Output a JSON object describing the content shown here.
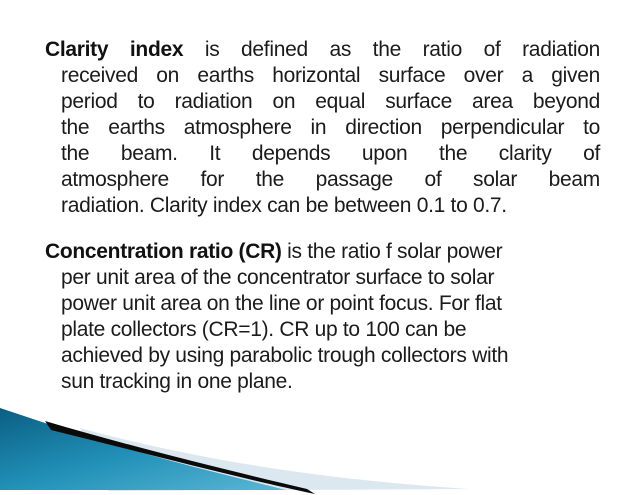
{
  "slide": {
    "p1": {
      "lead": "Clarity index",
      "first_line_rest": " is defined as the ratio of radiation",
      "lines_justified": [
        "received on earths horizontal surface over a given",
        "period to radiation on equal surface area beyond",
        "the earths atmosphere in direction perpendicular to",
        "the beam. It depends upon the clarity of",
        "atmosphere for the passage of solar beam"
      ],
      "last_line": "radiation. Clarity index can be between 0.1 to 0.7."
    },
    "p2": {
      "lead": "Concentration ratio (CR)",
      "first_line_rest": " is the ratio f solar power",
      "lines": [
        "per unit area of the concentrator surface to solar",
        "power unit area on the line or point focus. For flat",
        "plate collectors (CR=1). CR up to 100 can be",
        "achieved by using parabolic trough collectors with",
        "sun tracking in one plane."
      ]
    },
    "text_color": "#1b1b1b"
  },
  "decoration": {
    "teal_top": "#0b5e83",
    "teal_mid": "#2190b7",
    "teal_bottom": "#5ab7d5",
    "stripe_color": "#0a0a0a",
    "pale_color": "#dce8f0"
  }
}
